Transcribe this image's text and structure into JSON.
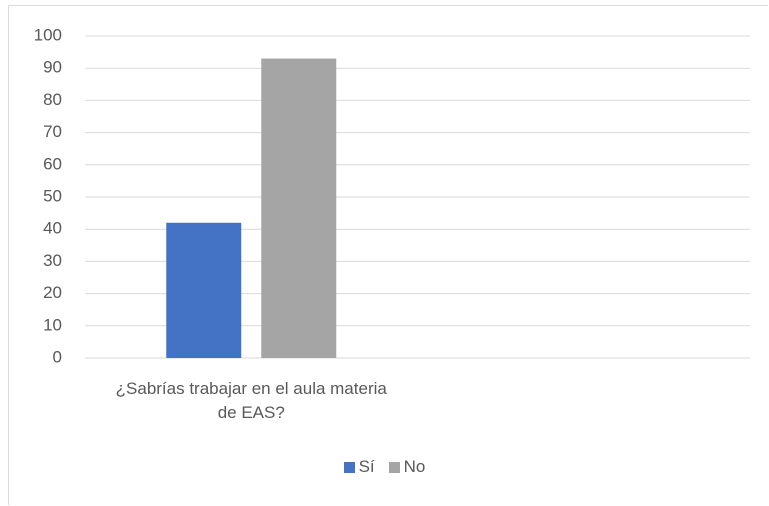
{
  "chart_data": {
    "type": "bar",
    "categories": [
      "¿Sabrías trabajar en el aula materia de EAS?",
      null
    ],
    "series": [
      {
        "name": "Sí",
        "color": "#4472c4",
        "values": [
          42,
          null
        ]
      },
      {
        "name": "No",
        "color": "#a5a5a5",
        "values": [
          93,
          null
        ]
      }
    ],
    "ylim": [
      0,
      100
    ],
    "yticks": [
      0,
      10,
      20,
      30,
      40,
      50,
      60,
      70,
      80,
      90,
      100
    ],
    "grid": true,
    "legend": "bottom"
  }
}
